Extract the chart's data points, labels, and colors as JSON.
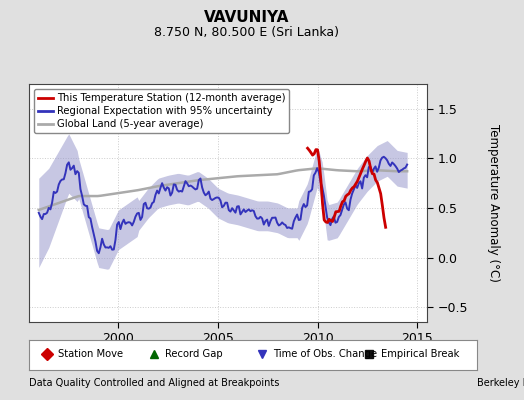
{
  "title": "VAVUNIYA",
  "subtitle": "8.750 N, 80.500 E (Sri Lanka)",
  "ylabel": "Temperature Anomaly (°C)",
  "xlabel_left": "Data Quality Controlled and Aligned at Breakpoints",
  "xlabel_right": "Berkeley Earth",
  "ylim": [
    -0.65,
    1.75
  ],
  "xlim": [
    1995.5,
    2015.5
  ],
  "yticks": [
    -0.5,
    0,
    0.5,
    1.0,
    1.5
  ],
  "xticks": [
    2000,
    2005,
    2010,
    2015
  ],
  "bg_color": "#e0e0e0",
  "plot_bg_color": "#ffffff",
  "regional_color": "#3333bb",
  "regional_fill_color": "#9999cc",
  "station_color": "#cc0000",
  "global_color": "#aaaaaa",
  "legend_items": [
    {
      "label": "This Temperature Station (12-month average)",
      "color": "#cc0000",
      "lw": 2
    },
    {
      "label": "Regional Expectation with 95% uncertainty",
      "color": "#3333bb",
      "lw": 2
    },
    {
      "label": "Global Land (5-year average)",
      "color": "#aaaaaa",
      "lw": 2
    }
  ],
  "bottom_legend": [
    {
      "label": "Station Move",
      "color": "#cc0000",
      "marker": "D"
    },
    {
      "label": "Record Gap",
      "color": "#006600",
      "marker": "^"
    },
    {
      "label": "Time of Obs. Change",
      "color": "#3333bb",
      "marker": "v"
    },
    {
      "label": "Empirical Break",
      "color": "#111111",
      "marker": "s"
    }
  ]
}
